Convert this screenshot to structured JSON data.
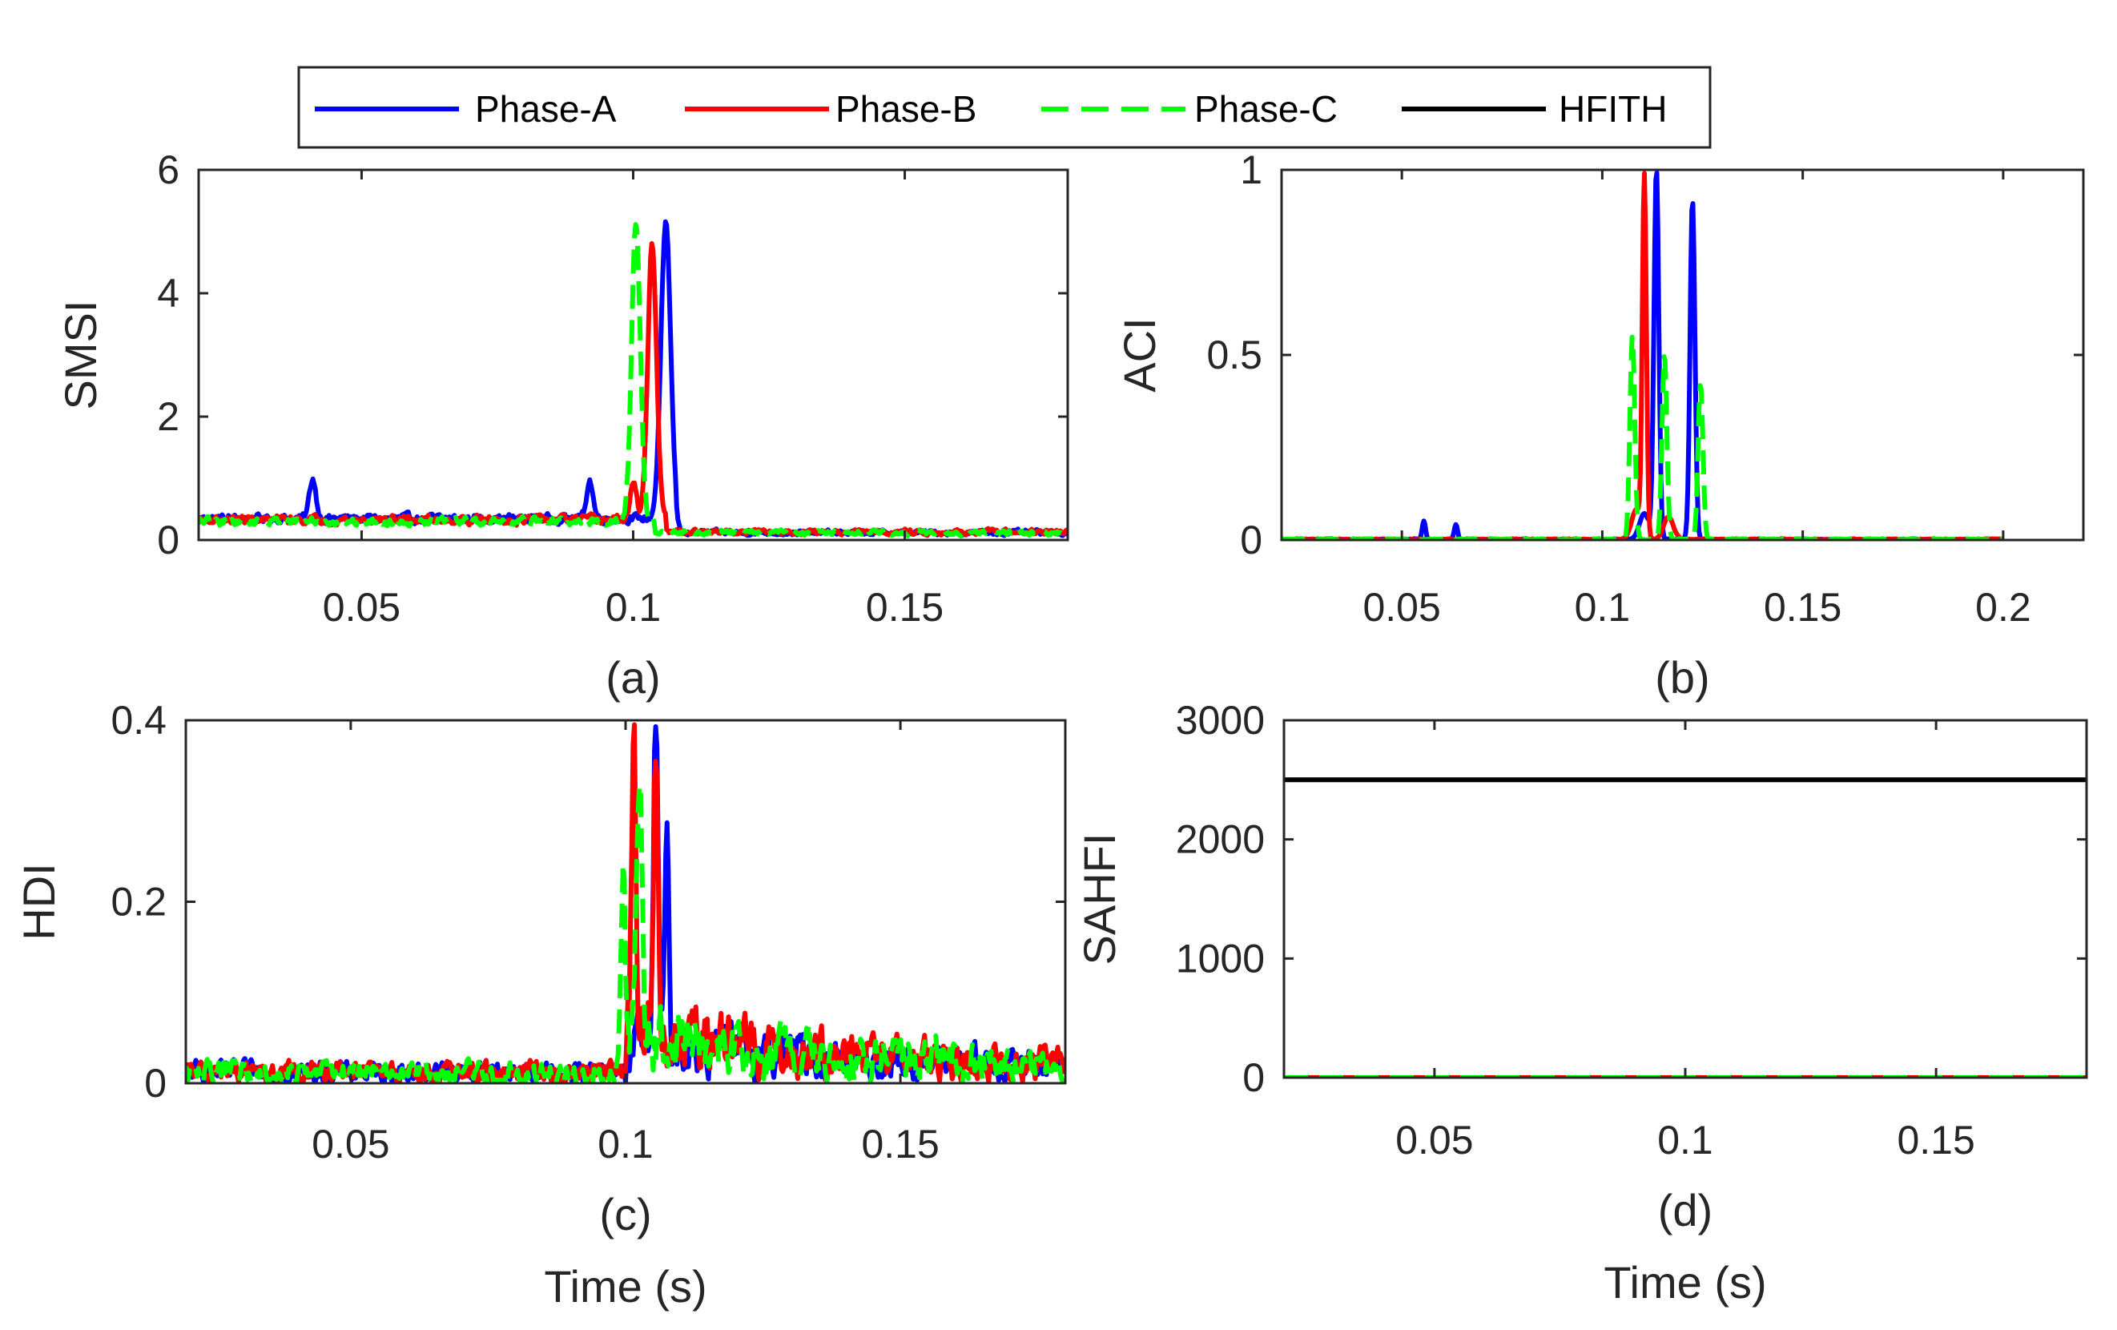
{
  "legend": {
    "entries": [
      {
        "name": "Phase-A",
        "color": "#0000ff",
        "dash": "solid"
      },
      {
        "name": "Phase-B",
        "color": "#ff0000",
        "dash": "solid"
      },
      {
        "name": "Phase-C",
        "color": "#00ff00",
        "dash": "dashed"
      },
      {
        "name": "HFITH",
        "color": "#000000",
        "dash": "solid"
      }
    ]
  },
  "chart_data": [
    {
      "id": "a",
      "type": "line",
      "panel_label": "(a)",
      "xlabel": "",
      "ylabel": "SMSI",
      "xlim": [
        0.02,
        0.18
      ],
      "ylim": [
        0,
        6
      ],
      "xticks": [
        0.05,
        0.1,
        0.15
      ],
      "xtick_labels": [
        "0.05",
        "0.1",
        "0.15"
      ],
      "yticks": [
        0,
        2,
        4,
        6
      ],
      "ytick_labels": [
        "0",
        "2",
        "4",
        "6"
      ],
      "series": [
        {
          "name": "Phase-A",
          "color": "#0000ff",
          "dash": "solid",
          "baseline": 0.35,
          "noise": 0.12,
          "decay_after": 0.108,
          "decay_to": 0.12,
          "peaks": [
            {
              "x": 0.106,
              "y": 4.75,
              "w": 0.0009
            },
            {
              "x": 0.041,
              "y": 0.65,
              "w": 0.0006
            },
            {
              "x": 0.092,
              "y": 0.62,
              "w": 0.0006
            }
          ]
        },
        {
          "name": "Phase-B",
          "color": "#ff0000",
          "dash": "solid",
          "baseline": 0.33,
          "noise": 0.12,
          "decay_after": 0.106,
          "decay_to": 0.13,
          "peaks": [
            {
              "x": 0.1035,
              "y": 4.5,
              "w": 0.0008
            },
            {
              "x": 0.1,
              "y": 0.6,
              "w": 0.0006
            }
          ]
        },
        {
          "name": "Phase-C",
          "color": "#00ff00",
          "dash": "dashed",
          "baseline": 0.3,
          "noise": 0.12,
          "decay_after": 0.104,
          "decay_to": 0.12,
          "peaks": [
            {
              "x": 0.1005,
              "y": 4.8,
              "w": 0.0008
            }
          ]
        }
      ]
    },
    {
      "id": "b",
      "type": "line",
      "panel_label": "(b)",
      "xlabel": "",
      "ylabel": "ACI",
      "xlim": [
        0.02,
        0.22
      ],
      "ylim": [
        0,
        1
      ],
      "xticks": [
        0.05,
        0.1,
        0.15,
        0.2
      ],
      "xtick_labels": [
        "0.05",
        "0.1",
        "0.15",
        "0.2"
      ],
      "yticks": [
        0,
        0.5,
        1
      ],
      "ytick_labels": [
        "0",
        "0.5",
        "1"
      ],
      "series": [
        {
          "name": "Phase-A",
          "color": "#0000ff",
          "dash": "solid",
          "baseline": 0.002,
          "noise": 0.002,
          "xmax": 0.2,
          "peaks": [
            {
              "x": 0.1135,
              "y": 1.0,
              "w": 0.0006
            },
            {
              "x": 0.1225,
              "y": 0.92,
              "w": 0.0006
            },
            {
              "x": 0.0555,
              "y": 0.05,
              "w": 0.0004
            },
            {
              "x": 0.0635,
              "y": 0.04,
              "w": 0.0004
            },
            {
              "x": 0.1105,
              "y": 0.07,
              "w": 0.0012
            }
          ]
        },
        {
          "name": "Phase-B",
          "color": "#ff0000",
          "dash": "solid",
          "baseline": 0.002,
          "noise": 0.002,
          "xmax": 0.2,
          "peaks": [
            {
              "x": 0.1105,
              "y": 0.97,
              "w": 0.0005
            },
            {
              "x": 0.1085,
              "y": 0.08,
              "w": 0.0012
            },
            {
              "x": 0.1165,
              "y": 0.06,
              "w": 0.0012
            }
          ]
        },
        {
          "name": "Phase-C",
          "color": "#00ff00",
          "dash": "dashed",
          "baseline": 0.002,
          "noise": 0.002,
          "xmax": 0.2,
          "peaks": [
            {
              "x": 0.1075,
              "y": 0.55,
              "w": 0.0006
            },
            {
              "x": 0.1155,
              "y": 0.5,
              "w": 0.0006
            },
            {
              "x": 0.1245,
              "y": 0.42,
              "w": 0.0006
            }
          ]
        }
      ]
    },
    {
      "id": "c",
      "type": "line",
      "panel_label": "(c)",
      "xlabel": "Time (s)",
      "ylabel": "HDI",
      "xlim": [
        0.02,
        0.18
      ],
      "ylim": [
        0,
        0.4
      ],
      "xticks": [
        0.05,
        0.1,
        0.15
      ],
      "xtick_labels": [
        "0.05",
        "0.1",
        "0.15"
      ],
      "yticks": [
        0,
        0.2,
        0.4
      ],
      "ytick_labels": [
        "0",
        "0.2",
        "0.4"
      ],
      "series": [
        {
          "name": "Phase-A",
          "color": "#0000ff",
          "dash": "solid",
          "baseline": 0.012,
          "noise": 0.02,
          "burst_start": 0.1,
          "burst_level": 0.035,
          "peaks": [
            {
              "x": 0.1055,
              "y": 0.36,
              "w": 0.0004
            },
            {
              "x": 0.1075,
              "y": 0.21,
              "w": 0.0004
            }
          ]
        },
        {
          "name": "Phase-B",
          "color": "#ff0000",
          "dash": "solid",
          "baseline": 0.012,
          "noise": 0.02,
          "burst_start": 0.1,
          "burst_level": 0.045,
          "peaks": [
            {
              "x": 0.1015,
              "y": 0.345,
              "w": 0.0004
            },
            {
              "x": 0.1055,
              "y": 0.32,
              "w": 0.0004
            }
          ]
        },
        {
          "name": "Phase-C",
          "color": "#00ff00",
          "dash": "dashed",
          "baseline": 0.012,
          "noise": 0.022,
          "burst_start": 0.0995,
          "burst_level": 0.04,
          "peaks": [
            {
              "x": 0.1025,
              "y": 0.28,
              "w": 0.0005
            },
            {
              "x": 0.0995,
              "y": 0.18,
              "w": 0.0004
            }
          ]
        }
      ]
    },
    {
      "id": "d",
      "type": "line",
      "panel_label": "(d)",
      "xlabel": "Time (s)",
      "ylabel": "SAHFI",
      "xlim": [
        0.02,
        0.18
      ],
      "ylim": [
        0,
        3000
      ],
      "xticks": [
        0.05,
        0.1,
        0.15
      ],
      "xtick_labels": [
        "0.05",
        "0.1",
        "0.15"
      ],
      "yticks": [
        0,
        1000,
        2000,
        3000
      ],
      "ytick_labels": [
        "0",
        "1000",
        "2000",
        "3000"
      ],
      "series": [
        {
          "name": "HFITH",
          "color": "#000000",
          "dash": "solid",
          "constant": 2500
        },
        {
          "name": "Phase-A",
          "color": "#0000ff",
          "dash": "solid",
          "constant": 0
        },
        {
          "name": "Phase-B",
          "color": "#ff0000",
          "dash": "solid",
          "constant": 0
        },
        {
          "name": "Phase-C",
          "color": "#00ff00",
          "dash": "dashed",
          "constant": 0
        }
      ]
    }
  ]
}
